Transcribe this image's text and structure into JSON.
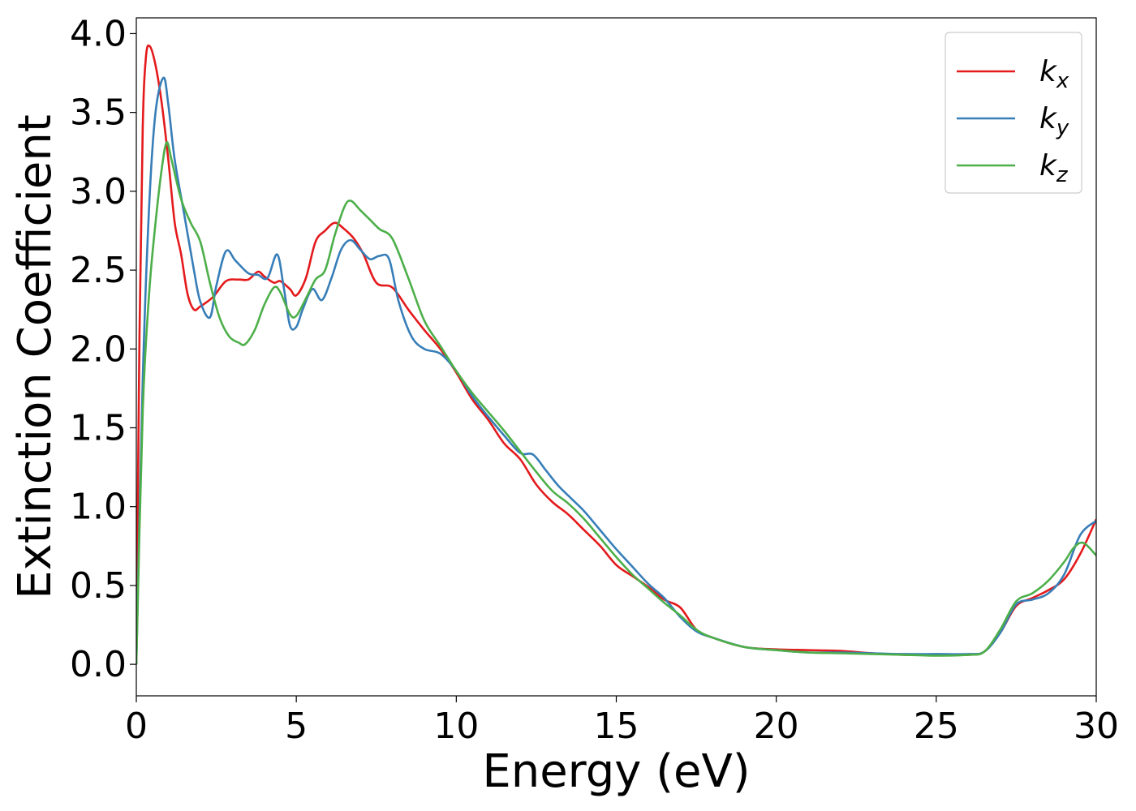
{
  "chart_data": {
    "type": "line",
    "title": "",
    "xlabel": "Energy (eV)",
    "ylabel": "Extinction Coefficient",
    "xlim": [
      0,
      30
    ],
    "ylim": [
      -0.2,
      4.1
    ],
    "xticks": [
      0,
      5,
      10,
      15,
      20,
      25,
      30
    ],
    "xtick_labels": [
      "0",
      "5",
      "10",
      "15",
      "20",
      "25",
      "30"
    ],
    "yticks": [
      0.0,
      0.5,
      1.0,
      1.5,
      2.0,
      2.5,
      3.0,
      3.5,
      4.0
    ],
    "ytick_labels": [
      "0.0",
      "0.5",
      "1.0",
      "1.5",
      "2.0",
      "2.5",
      "3.0",
      "3.5",
      "4.0"
    ],
    "grid": false,
    "legend_position": "top-right",
    "series": [
      {
        "name": "k_x",
        "legend_base": "k",
        "legend_sub": "x",
        "color": "#e41a1c",
        "x": [
          0,
          0.1,
          0.2,
          0.3,
          0.42,
          0.6,
          0.8,
          1.0,
          1.2,
          1.4,
          1.6,
          1.8,
          2.0,
          2.4,
          2.8,
          3.2,
          3.5,
          3.8,
          4.0,
          4.3,
          4.5,
          4.8,
          5.0,
          5.3,
          5.6,
          5.9,
          6.2,
          6.5,
          6.8,
          7.1,
          7.5,
          8.0,
          8.5,
          9.0,
          9.5,
          10,
          10.5,
          11,
          11.5,
          12,
          12.5,
          13,
          13.5,
          14,
          14.5,
          15,
          15.5,
          16,
          16.5,
          17,
          17.5,
          18,
          19,
          20,
          21,
          22,
          23,
          24,
          25,
          26,
          26.5,
          27,
          27.5,
          28,
          28.5,
          29,
          29.5,
          30
        ],
        "y": [
          0,
          2.1,
          3.4,
          3.85,
          3.92,
          3.8,
          3.55,
          3.2,
          2.8,
          2.6,
          2.35,
          2.25,
          2.27,
          2.33,
          2.43,
          2.44,
          2.44,
          2.49,
          2.46,
          2.42,
          2.43,
          2.38,
          2.34,
          2.45,
          2.68,
          2.75,
          2.8,
          2.76,
          2.7,
          2.6,
          2.42,
          2.39,
          2.25,
          2.12,
          2.0,
          1.85,
          1.68,
          1.55,
          1.4,
          1.3,
          1.14,
          1.03,
          0.95,
          0.85,
          0.75,
          0.63,
          0.56,
          0.49,
          0.41,
          0.36,
          0.22,
          0.17,
          0.11,
          0.095,
          0.09,
          0.085,
          0.07,
          0.06,
          0.06,
          0.06,
          0.08,
          0.2,
          0.37,
          0.42,
          0.47,
          0.54,
          0.7,
          0.92
        ]
      },
      {
        "name": "k_y",
        "legend_base": "k",
        "legend_sub": "y",
        "color": "#377eb8",
        "x": [
          0,
          0.2,
          0.4,
          0.6,
          0.85,
          1.0,
          1.2,
          1.5,
          1.8,
          2.0,
          2.3,
          2.5,
          2.8,
          3.1,
          3.5,
          3.8,
          4.1,
          4.4,
          4.6,
          4.8,
          5.0,
          5.2,
          5.5,
          5.8,
          6.1,
          6.4,
          6.7,
          7.0,
          7.3,
          7.6,
          7.9,
          8.2,
          8.6,
          9.0,
          9.5,
          10,
          10.5,
          11,
          11.5,
          12,
          12.4,
          12.8,
          13.2,
          13.6,
          14,
          14.5,
          15,
          15.5,
          16,
          16.5,
          17,
          17.5,
          18,
          19,
          20,
          21,
          22,
          23,
          24,
          25,
          26,
          26.5,
          27,
          27.5,
          28,
          28.5,
          29,
          29.5,
          30
        ],
        "y": [
          0,
          1.8,
          2.9,
          3.5,
          3.72,
          3.55,
          3.2,
          2.85,
          2.5,
          2.3,
          2.2,
          2.4,
          2.62,
          2.56,
          2.48,
          2.47,
          2.45,
          2.6,
          2.4,
          2.15,
          2.14,
          2.25,
          2.38,
          2.31,
          2.45,
          2.63,
          2.69,
          2.63,
          2.57,
          2.59,
          2.57,
          2.3,
          2.08,
          2.0,
          1.97,
          1.86,
          1.7,
          1.57,
          1.45,
          1.34,
          1.33,
          1.23,
          1.13,
          1.05,
          0.97,
          0.85,
          0.73,
          0.62,
          0.51,
          0.42,
          0.3,
          0.21,
          0.17,
          0.11,
          0.09,
          0.075,
          0.075,
          0.07,
          0.065,
          0.065,
          0.065,
          0.08,
          0.2,
          0.38,
          0.41,
          0.45,
          0.57,
          0.82,
          0.91
        ]
      },
      {
        "name": "k_z",
        "legend_base": "k",
        "legend_sub": "z",
        "color": "#4daf4a",
        "x": [
          0,
          0.2,
          0.4,
          0.6,
          0.8,
          0.95,
          1.1,
          1.4,
          1.7,
          2.0,
          2.3,
          2.6,
          2.9,
          3.2,
          3.4,
          3.7,
          4.0,
          4.3,
          4.5,
          4.8,
          5.0,
          5.3,
          5.6,
          5.9,
          6.2,
          6.5,
          6.7,
          7.0,
          7.3,
          7.6,
          8.0,
          8.5,
          9.0,
          9.5,
          10,
          10.5,
          11,
          11.5,
          12,
          12.5,
          13,
          13.5,
          14,
          14.5,
          15,
          15.5,
          16,
          16.5,
          17,
          17.5,
          18,
          19,
          20,
          21,
          22,
          23,
          24,
          25,
          26,
          26.5,
          27,
          27.5,
          28,
          28.5,
          29,
          29.3,
          29.6,
          30
        ],
        "y": [
          0,
          1.6,
          2.35,
          2.8,
          3.15,
          3.31,
          3.2,
          2.95,
          2.8,
          2.68,
          2.42,
          2.2,
          2.08,
          2.04,
          2.03,
          2.12,
          2.28,
          2.39,
          2.36,
          2.22,
          2.21,
          2.32,
          2.44,
          2.5,
          2.72,
          2.9,
          2.94,
          2.88,
          2.82,
          2.76,
          2.7,
          2.45,
          2.18,
          2.02,
          1.86,
          1.72,
          1.6,
          1.48,
          1.35,
          1.22,
          1.1,
          1.02,
          0.92,
          0.8,
          0.68,
          0.57,
          0.48,
          0.39,
          0.31,
          0.22,
          0.17,
          0.11,
          0.09,
          0.075,
          0.07,
          0.065,
          0.06,
          0.055,
          0.06,
          0.08,
          0.22,
          0.4,
          0.45,
          0.53,
          0.65,
          0.74,
          0.77,
          0.69
        ]
      }
    ]
  }
}
